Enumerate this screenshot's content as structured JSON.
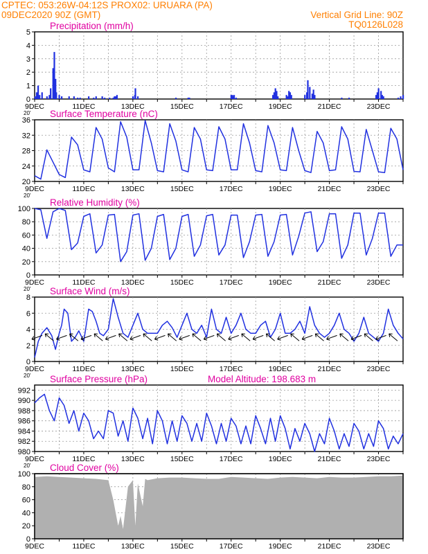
{
  "header": {
    "line1_left": "CPTEC:   053:26W-04:12S   PROX02: URUARA (PA)",
    "line2_left": "09DEC2020 90Z (GMT)",
    "line2_right": "Vertical Grid Line: 90Z",
    "line3_right": "TQ0126L028"
  },
  "colors": {
    "header": "#ff7f00",
    "panel_title": "#e000a0",
    "line": "#2030e0",
    "bar": "#2030e0",
    "cloud": "#b0b0b0",
    "grid": "#999999"
  },
  "x_axis": {
    "day_labels": [
      "9DEC",
      "11DEC",
      "13DEC",
      "15DEC",
      "17DEC",
      "19DEC",
      "21DEC",
      "23DEC"
    ],
    "days_range": [
      0,
      15
    ],
    "label_stub": "20'"
  },
  "chart_data": [
    {
      "type": "bar",
      "title": "Precipitation (mm/h)",
      "ylim": [
        0,
        5
      ],
      "yticks": [
        0,
        1,
        2,
        3,
        4,
        5
      ],
      "x_days": [
        0.02,
        0.08,
        0.14,
        0.2,
        0.3,
        0.5,
        0.6,
        0.65,
        0.75,
        0.8,
        0.85,
        0.88,
        1.0,
        1.1,
        1.4,
        1.6,
        1.75,
        1.85,
        2.2,
        2.4,
        2.5,
        2.75,
        2.85,
        3.05,
        3.2,
        3.25,
        3.3,
        3.35,
        4.0,
        4.08,
        4.1,
        4.2,
        5.75,
        6.25,
        6.3,
        8.0,
        8.05,
        8.1,
        8.12,
        8.2,
        9.7,
        9.75,
        9.8,
        9.85,
        9.9,
        10.25,
        10.3,
        10.35,
        10.4,
        10.45,
        11.0,
        11.08,
        11.12,
        11.2,
        11.3,
        11.35,
        11.4,
        12.5,
        12.8,
        13.9,
        13.95,
        14.0,
        14.1,
        14.15,
        14.2,
        14.8,
        14.9,
        15.0
      ],
      "values": [
        0.2,
        0.5,
        1.0,
        0.3,
        0.5,
        0.2,
        0.3,
        0.8,
        2.3,
        3.5,
        1.5,
        0.5,
        0.3,
        0.2,
        0.2,
        0.2,
        0.1,
        0.1,
        0.2,
        0.1,
        0.2,
        0.2,
        0.1,
        0.1,
        0.1,
        0.2,
        0.2,
        0.3,
        0.2,
        0.3,
        0.8,
        0.2,
        0.1,
        0.1,
        0.1,
        0.3,
        0.3,
        0.2,
        0.3,
        0.1,
        0.3,
        0.5,
        0.8,
        0.6,
        0.2,
        0.3,
        0.2,
        0.6,
        0.5,
        0.3,
        0.3,
        0.5,
        1.4,
        0.9,
        0.4,
        0.7,
        0.3,
        0.1,
        0.1,
        0.3,
        0.5,
        0.8,
        0.6,
        0.3,
        0.2,
        0.1,
        0.2,
        0.3
      ]
    },
    {
      "type": "line",
      "title": "Surface Temperature (nC)",
      "ylim": [
        20,
        36
      ],
      "yticks": [
        20,
        24,
        28,
        32,
        36
      ],
      "x_days": [
        0,
        0.25,
        0.5,
        0.75,
        1.0,
        1.25,
        1.5,
        1.75,
        2.0,
        2.25,
        2.5,
        2.75,
        3.0,
        3.25,
        3.5,
        3.75,
        4.0,
        4.25,
        4.5,
        4.75,
        5.0,
        5.25,
        5.5,
        5.75,
        6.0,
        6.25,
        6.5,
        6.75,
        7.0,
        7.25,
        7.5,
        7.75,
        8.0,
        8.25,
        8.5,
        8.75,
        9.0,
        9.25,
        9.5,
        9.75,
        10.0,
        10.25,
        10.5,
        10.75,
        11.0,
        11.25,
        11.5,
        11.75,
        12.0,
        12.25,
        12.5,
        12.75,
        13.0,
        13.25,
        13.5,
        13.75,
        14.0,
        14.25,
        14.5,
        14.75,
        15.0
      ],
      "values": [
        21.5,
        20.6,
        28.2,
        25.0,
        21.8,
        21.0,
        31.5,
        29.5,
        23.0,
        22.5,
        34.0,
        31.0,
        23.5,
        22.5,
        35.5,
        31.5,
        23.0,
        23.0,
        35.8,
        30.0,
        22.8,
        22.5,
        35.0,
        30.5,
        23.0,
        22.5,
        34.0,
        31.0,
        23.0,
        22.8,
        34.2,
        31.0,
        23.0,
        23.0,
        35.0,
        30.0,
        22.8,
        22.5,
        34.5,
        30.0,
        23.0,
        22.8,
        34.0,
        28.0,
        22.8,
        22.3,
        33.0,
        30.0,
        22.8,
        23.0,
        34.2,
        31.0,
        22.6,
        22.5,
        33.5,
        28.0,
        22.5,
        22.3,
        33.8,
        31.0,
        23.0
      ]
    },
    {
      "type": "line",
      "title": "Relative Humidity (%)",
      "ylim": [
        0,
        100
      ],
      "yticks": [
        0,
        20,
        40,
        60,
        80,
        100
      ],
      "x_days": [
        0,
        0.25,
        0.5,
        0.75,
        1.0,
        1.25,
        1.5,
        1.75,
        2.0,
        2.25,
        2.5,
        2.75,
        3.0,
        3.25,
        3.5,
        3.75,
        4.0,
        4.25,
        4.5,
        4.75,
        5.0,
        5.25,
        5.5,
        5.75,
        6.0,
        6.25,
        6.5,
        6.75,
        7.0,
        7.25,
        7.5,
        7.75,
        8.0,
        8.25,
        8.5,
        8.75,
        9.0,
        9.25,
        9.5,
        9.75,
        10.0,
        10.25,
        10.5,
        10.75,
        11.0,
        11.25,
        11.5,
        11.75,
        12.0,
        12.25,
        12.5,
        12.75,
        13.0,
        13.25,
        13.5,
        13.75,
        14.0,
        14.25,
        14.5,
        14.75,
        15.0
      ],
      "values": [
        100,
        98,
        55,
        95,
        100,
        97,
        38,
        48,
        88,
        92,
        33,
        45,
        90,
        91,
        20,
        35,
        90,
        92,
        22,
        40,
        88,
        91,
        23,
        40,
        88,
        91,
        28,
        45,
        89,
        91,
        30,
        45,
        90,
        90,
        26,
        50,
        90,
        91,
        28,
        50,
        90,
        91,
        30,
        58,
        93,
        95,
        35,
        50,
        92,
        92,
        25,
        45,
        93,
        93,
        30,
        55,
        93,
        93,
        28,
        45,
        45
      ]
    },
    {
      "type": "line",
      "title": "Surface Wind (m/s)",
      "ylim": [
        0,
        8
      ],
      "yticks": [
        0,
        2,
        4,
        6,
        8
      ],
      "x_days": [
        0,
        0.15,
        0.3,
        0.5,
        0.7,
        0.85,
        1.0,
        1.1,
        1.2,
        1.35,
        1.5,
        1.65,
        1.8,
        2.0,
        2.1,
        2.2,
        2.35,
        2.5,
        2.65,
        2.8,
        3.0,
        3.2,
        3.4,
        3.6,
        3.8,
        4.0,
        4.2,
        4.4,
        4.6,
        4.8,
        5.0,
        5.2,
        5.4,
        5.6,
        5.8,
        6.0,
        6.2,
        6.4,
        6.6,
        6.8,
        7.0,
        7.2,
        7.4,
        7.6,
        7.8,
        8.0,
        8.2,
        8.4,
        8.6,
        8.8,
        9.0,
        9.2,
        9.4,
        9.6,
        9.8,
        10.0,
        10.2,
        10.4,
        10.6,
        10.8,
        11.0,
        11.2,
        11.4,
        11.6,
        11.8,
        12.0,
        12.2,
        12.4,
        12.6,
        12.8,
        13.0,
        13.2,
        13.4,
        13.6,
        13.8,
        14.0,
        14.2,
        14.4,
        14.6,
        14.8,
        15.0
      ],
      "values": [
        0.5,
        2.5,
        3.5,
        4.2,
        3.2,
        1.5,
        3.5,
        4.5,
        6.5,
        6.0,
        2.5,
        3.0,
        3.8,
        2.5,
        4.5,
        6.5,
        6.2,
        5.0,
        3.5,
        3.2,
        4.0,
        7.8,
        5.5,
        3.5,
        3.0,
        4.5,
        6.0,
        4.0,
        3.5,
        3.5,
        3.5,
        4.5,
        5.0,
        4.2,
        3.0,
        4.5,
        6.0,
        4.0,
        3.5,
        4.5,
        3.0,
        6.5,
        4.0,
        3.5,
        5.5,
        3.5,
        4.5,
        6.0,
        4.0,
        3.5,
        3.5,
        4.5,
        5.0,
        3.0,
        4.0,
        6.0,
        3.5,
        3.5,
        4.0,
        5.0,
        3.5,
        6.8,
        4.5,
        3.5,
        3.0,
        3.5,
        4.5,
        6.0,
        4.0,
        3.5,
        2.5,
        3.5,
        5.5,
        3.5,
        3.0,
        2.5,
        3.5,
        6.5,
        4.5,
        3.5,
        2.8
      ]
    },
    {
      "type": "line",
      "title": "Surface Pressure (hPa)",
      "annotation": "Model Altitude: 198.683 m",
      "ylim": [
        980,
        993
      ],
      "yticks": [
        980,
        982,
        984,
        986,
        988,
        990,
        992
      ],
      "x_days": [
        0,
        0.2,
        0.4,
        0.6,
        0.8,
        1.0,
        1.2,
        1.4,
        1.6,
        1.8,
        2.0,
        2.2,
        2.4,
        2.6,
        2.8,
        3.0,
        3.2,
        3.4,
        3.6,
        3.8,
        4.0,
        4.2,
        4.4,
        4.6,
        4.8,
        5.0,
        5.2,
        5.4,
        5.6,
        5.8,
        6.0,
        6.2,
        6.4,
        6.6,
        6.8,
        7.0,
        7.2,
        7.4,
        7.6,
        7.8,
        8.0,
        8.2,
        8.4,
        8.6,
        8.8,
        9.0,
        9.2,
        9.4,
        9.6,
        9.8,
        10.0,
        10.2,
        10.4,
        10.6,
        10.8,
        11.0,
        11.2,
        11.4,
        11.6,
        11.8,
        12.0,
        12.2,
        12.4,
        12.6,
        12.8,
        13.0,
        13.2,
        13.4,
        13.6,
        13.8,
        14.0,
        14.2,
        14.4,
        14.6,
        14.8,
        15.0
      ],
      "values": [
        989.5,
        990.5,
        991.2,
        988.0,
        986.0,
        990.5,
        989.0,
        985.5,
        988.0,
        984.0,
        987.5,
        986.0,
        982.5,
        984.0,
        982.5,
        988.0,
        987.5,
        983.0,
        986.0,
        982.0,
        988.5,
        986.5,
        982.5,
        986.5,
        981.5,
        988.0,
        986.0,
        981.5,
        986.0,
        982.0,
        987.0,
        985.5,
        982.0,
        985.5,
        982.0,
        987.5,
        985.0,
        981.5,
        985.5,
        982.0,
        986.5,
        985.0,
        981.5,
        985.0,
        981.5,
        987.0,
        984.5,
        981.5,
        986.5,
        982.0,
        987.0,
        984.5,
        980.5,
        984.5,
        982.0,
        985.5,
        983.5,
        980.0,
        983.5,
        981.5,
        986.5,
        984.0,
        980.5,
        983.5,
        981.0,
        985.5,
        984.0,
        980.5,
        983.5,
        981.0,
        986.0,
        984.5,
        980.5,
        983.0,
        981.5,
        983.5
      ]
    },
    {
      "type": "area",
      "title": "Cloud Cover (%)",
      "ylim": [
        0,
        100
      ],
      "yticks": [
        0,
        20,
        40,
        60,
        80,
        100
      ],
      "x_days": [
        0,
        0.5,
        1.0,
        1.5,
        2.0,
        2.5,
        3.0,
        3.2,
        3.4,
        3.5,
        3.6,
        3.8,
        4.0,
        4.1,
        4.2,
        4.4,
        4.5,
        4.6,
        5.0,
        5.5,
        6.0,
        6.5,
        7.0,
        7.5,
        8.0,
        8.5,
        9.0,
        9.5,
        10.0,
        10.5,
        11.0,
        11.5,
        12.0,
        12.5,
        13.0,
        13.5,
        14.0,
        14.5,
        15.0
      ],
      "values": [
        95,
        96,
        95,
        94,
        93,
        92,
        90,
        60,
        20,
        35,
        15,
        80,
        90,
        20,
        85,
        50,
        92,
        90,
        93,
        94,
        94,
        93,
        92,
        92,
        95,
        94,
        93,
        92,
        94,
        95,
        94,
        93,
        95,
        94,
        94,
        95,
        96,
        96,
        97
      ]
    }
  ]
}
